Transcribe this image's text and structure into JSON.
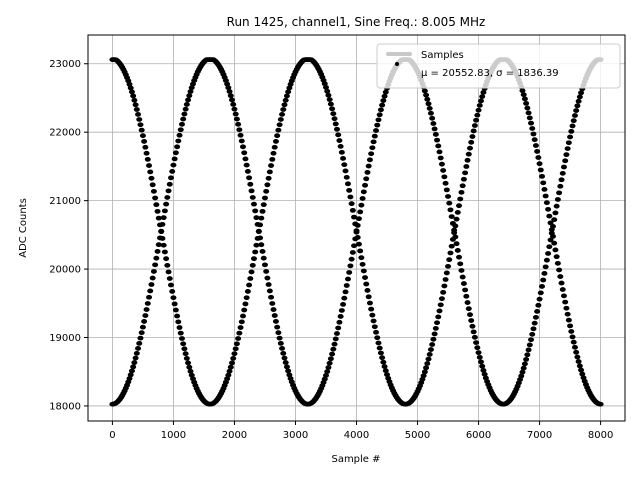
{
  "chart_data": {
    "type": "scatter",
    "title": "Run 1425, channel1, Sine Freq.: 8.005 MHz",
    "xlabel": "Sample #",
    "ylabel": "ADC Counts",
    "xlim": [
      -400,
      8400
    ],
    "ylim": [
      17780,
      23420
    ],
    "xticks": [
      0,
      1000,
      2000,
      3000,
      4000,
      5000,
      6000,
      7000,
      8000
    ],
    "yticks": [
      18000,
      19000,
      20000,
      21000,
      22000,
      23000
    ],
    "xtick_labels": [
      "0",
      "1000",
      "2000",
      "3000",
      "4000",
      "5000",
      "6000",
      "7000",
      "8000"
    ],
    "ytick_labels": [
      "18000",
      "19000",
      "20000",
      "21000",
      "22000",
      "23000"
    ],
    "grid": true,
    "legend": {
      "placement": "top-right",
      "entries": [
        {
          "label": "Samples",
          "color": "#c8c8c8"
        },
        {
          "label": "μ = 20552.83, σ = 1836.39",
          "color": "#000000"
        }
      ]
    },
    "series": [
      {
        "name": "Samples",
        "color": "#000000",
        "kind": "sine",
        "period_samples": 3203,
        "amplitude": 2525,
        "offset": 20550,
        "phase_peak_at": 1600,
        "clip_min": 18000,
        "clip_max": 23060,
        "x_range": [
          0,
          8000
        ],
        "step": 20,
        "families": 2
      }
    ]
  }
}
